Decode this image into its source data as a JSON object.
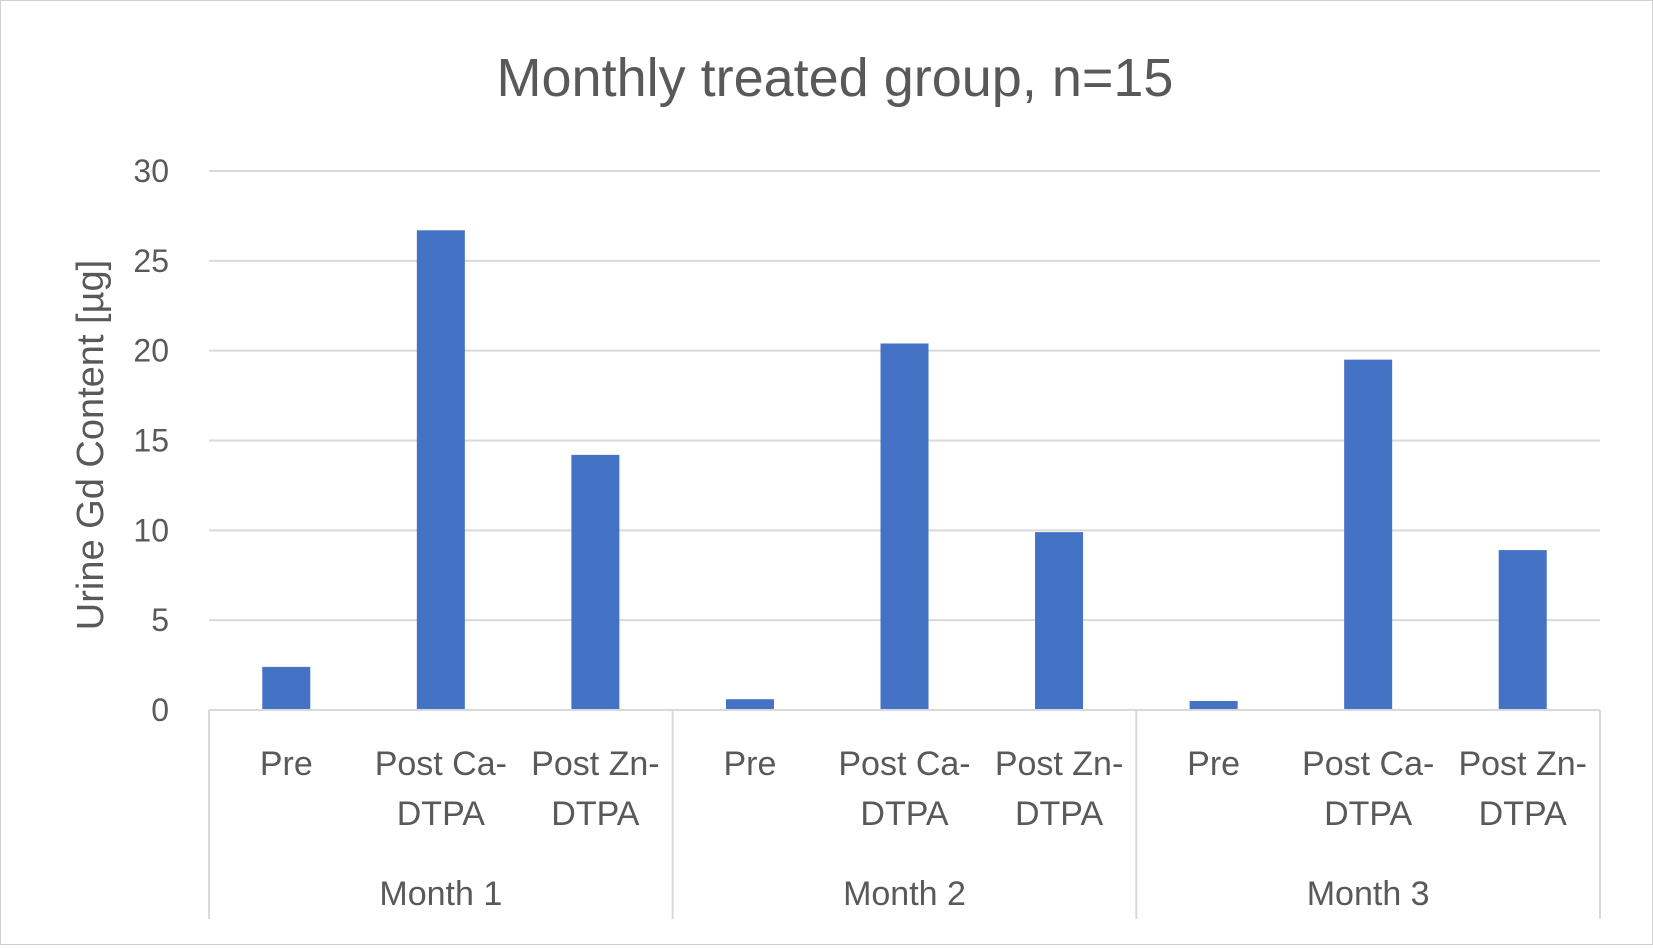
{
  "chart_data": {
    "type": "bar",
    "title": "Monthly treated group, n=15",
    "ylabel": "Urine Gd Content [µg]",
    "xlabel": "",
    "ylim": [
      0,
      30
    ],
    "yticks": [
      0,
      5,
      10,
      15,
      20,
      25,
      30
    ],
    "grid": true,
    "legend": "none",
    "bar_color": "#4472C4",
    "groups": [
      "Month 1",
      "Month 2",
      "Month 3"
    ],
    "categories": [
      [
        "Pre"
      ],
      [
        "Post Ca-",
        "DTPA"
      ],
      [
        "Post Zn-",
        "DTPA"
      ],
      [
        "Pre"
      ],
      [
        "Post Ca-",
        "DTPA"
      ],
      [
        "Post Zn-",
        "DTPA"
      ],
      [
        "Pre"
      ],
      [
        "Post Ca-",
        "DTPA"
      ],
      [
        "Post Zn-",
        "DTPA"
      ]
    ],
    "values": [
      2.4,
      26.7,
      14.2,
      0.6,
      20.4,
      9.9,
      0.5,
      19.5,
      8.9
    ]
  }
}
